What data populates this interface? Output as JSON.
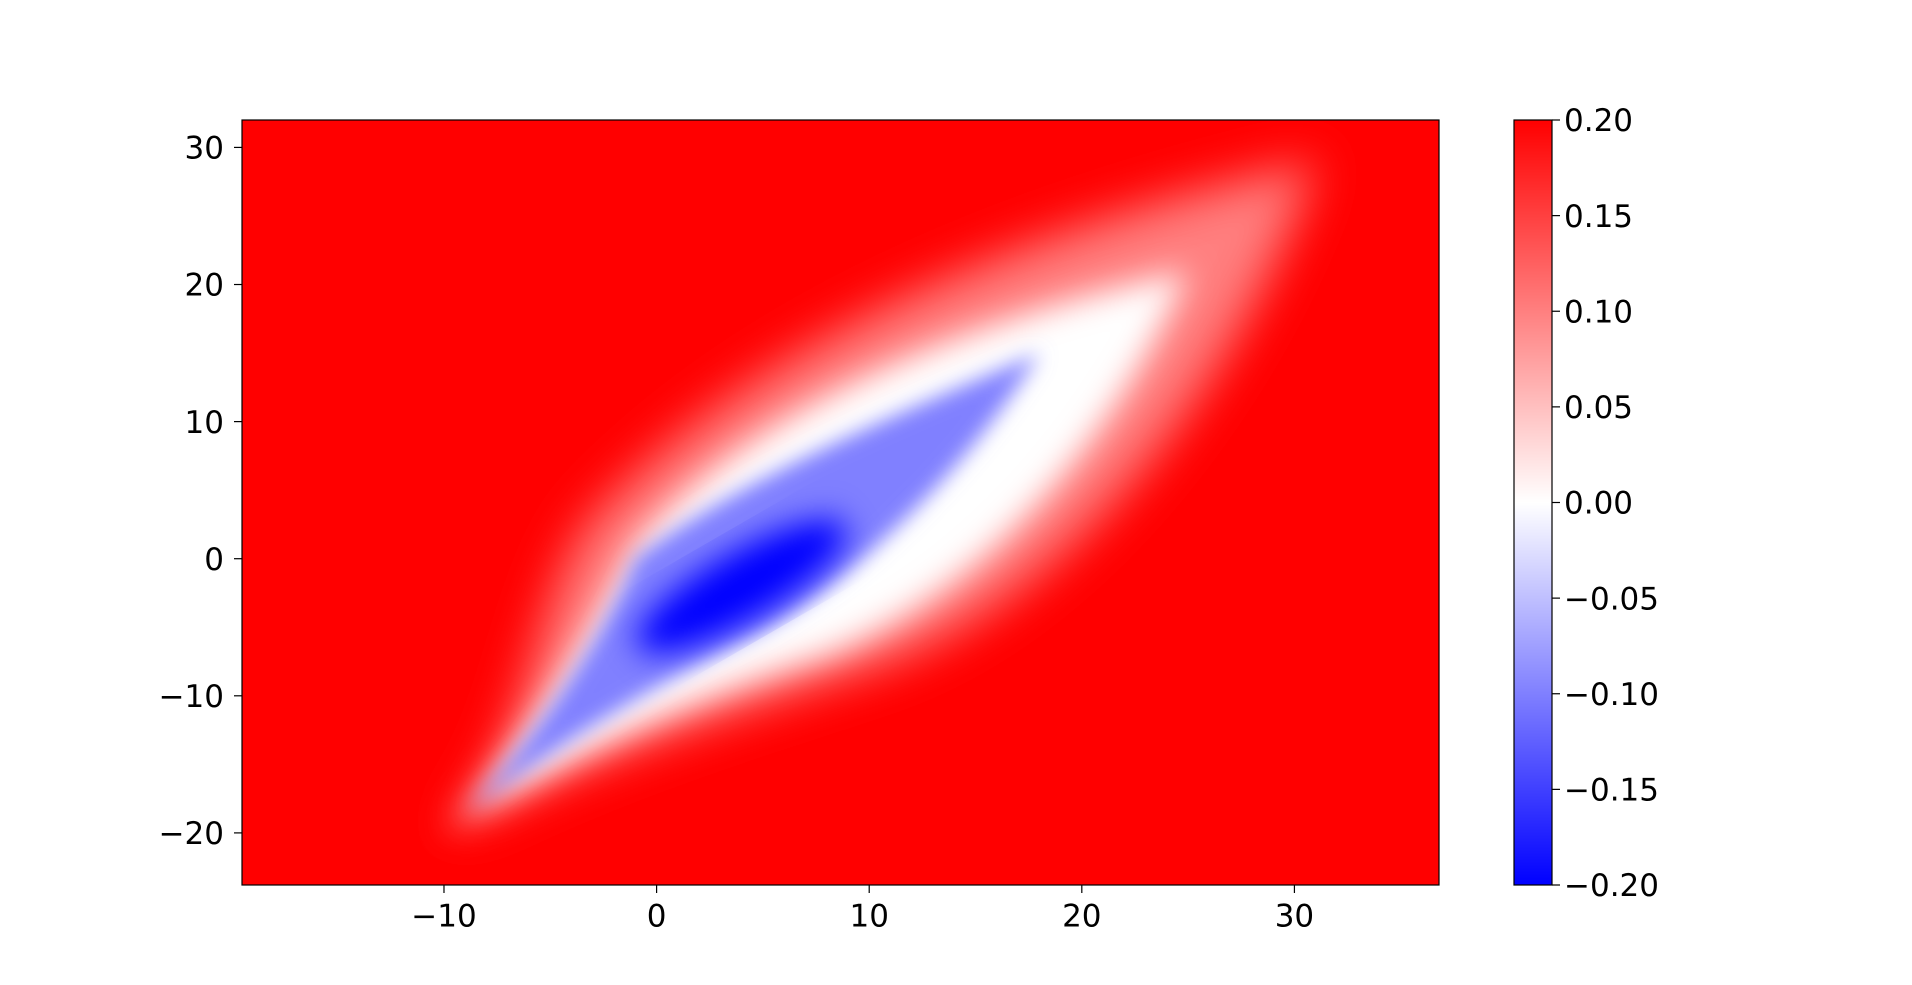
{
  "chart_data": {
    "type": "heatmap",
    "title": "",
    "xlabel": "",
    "ylabel": "",
    "xlim": [
      -19.5,
      36.8
    ],
    "ylim": [
      -23.8,
      32.0
    ],
    "x_ticks": [
      -10,
      0,
      10,
      20,
      30
    ],
    "y_ticks": [
      -20,
      -10,
      0,
      10,
      20,
      30
    ],
    "x_tick_labels": [
      "−10",
      "0",
      "10",
      "20",
      "30"
    ],
    "y_tick_labels": [
      "−20",
      "−10",
      "0",
      "10",
      "20",
      "30"
    ],
    "colormap": "bwr",
    "color_low": "#0000ff",
    "color_mid": "#ffffff",
    "color_high": "#ff0000",
    "vmin": -0.2,
    "vmax": 0.2,
    "colorbar_ticks": [
      0.2,
      0.15,
      0.1,
      0.05,
      0.0,
      -0.05,
      -0.1,
      -0.15,
      -0.2
    ],
    "colorbar_tick_labels": [
      "0.20",
      "0.15",
      "0.10",
      "0.05",
      "0.00",
      "−0.05",
      "−0.10",
      "−0.15",
      "−0.20"
    ],
    "colorbar_position": "right",
    "grid": false,
    "features": {
      "background_value": 0.2,
      "outer_region_tip": [
        -10,
        -20
      ],
      "outer_region_end": [
        31,
        29
      ],
      "negative_region_start": [
        -1,
        0
      ],
      "negative_region_tip": [
        18,
        15
      ],
      "negative_region_min_at": [
        4,
        -2
      ],
      "negative_region_min_value": -0.2
    }
  }
}
